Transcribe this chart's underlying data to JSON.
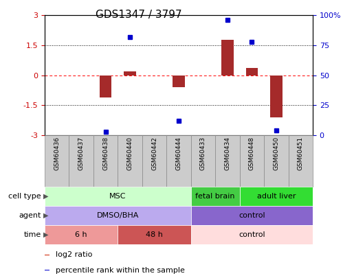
{
  "title": "GDS1347 / 3797",
  "samples": [
    "GSM60436",
    "GSM60437",
    "GSM60438",
    "GSM60440",
    "GSM60442",
    "GSM60444",
    "GSM60433",
    "GSM60434",
    "GSM60448",
    "GSM60450",
    "GSM60451"
  ],
  "log2_ratio": [
    0.0,
    0.0,
    -1.1,
    0.2,
    0.0,
    -0.6,
    0.0,
    1.75,
    0.35,
    -2.1,
    0.0
  ],
  "percentile_rank": [
    null,
    null,
    3,
    82,
    null,
    12,
    null,
    96,
    78,
    4,
    null
  ],
  "ylim_left": [
    -3,
    3
  ],
  "ylim_right": [
    0,
    100
  ],
  "yticks_left": [
    -3,
    -1.5,
    0,
    1.5,
    3
  ],
  "yticks_right": [
    0,
    25,
    50,
    75,
    100
  ],
  "yticklabels_left": [
    "-3",
    "-1.5",
    "0",
    "1.5",
    "3"
  ],
  "yticklabels_right": [
    "0",
    "25",
    "50",
    "75",
    "100%"
  ],
  "bar_color": "#A52A2A",
  "dot_color": "#0000CC",
  "left_tick_color": "#CC0000",
  "right_tick_color": "#0000CC",
  "cell_type_segments": [
    {
      "text": "MSC",
      "start": 0,
      "end": 6,
      "color": "#CCFFCC"
    },
    {
      "text": "fetal brain",
      "start": 6,
      "end": 8,
      "color": "#44CC44"
    },
    {
      "text": "adult liver",
      "start": 8,
      "end": 11,
      "color": "#33DD33"
    }
  ],
  "agent_segments": [
    {
      "text": "DMSO/BHA",
      "start": 0,
      "end": 6,
      "color": "#BBAAEE"
    },
    {
      "text": "control",
      "start": 6,
      "end": 11,
      "color": "#8866CC"
    }
  ],
  "time_segments": [
    {
      "text": "6 h",
      "start": 0,
      "end": 3,
      "color": "#EE9999"
    },
    {
      "text": "48 h",
      "start": 3,
      "end": 6,
      "color": "#CC5555"
    },
    {
      "text": "control",
      "start": 6,
      "end": 11,
      "color": "#FFDDDD"
    }
  ],
  "row_labels": [
    "cell type",
    "agent",
    "time"
  ],
  "legend_items": [
    {
      "label": "log2 ratio",
      "color": "#CC2200"
    },
    {
      "label": "percentile rank within the sample",
      "color": "#0000CC"
    }
  ],
  "sample_bg": "#CCCCCC",
  "plot_bg": "#FFFFFF"
}
